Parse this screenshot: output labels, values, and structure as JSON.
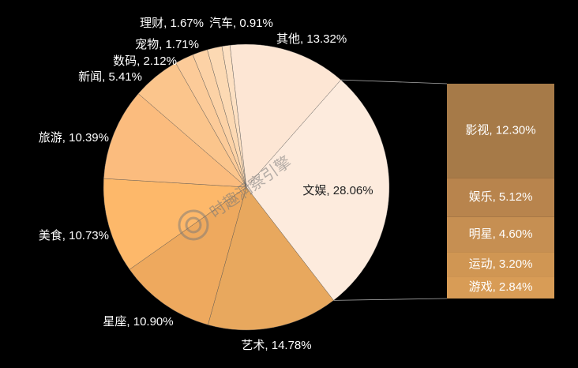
{
  "chart_data": {
    "type": "pie-of-bar",
    "categories": [
      "文娱",
      "艺术",
      "星座",
      "美食",
      "旅游",
      "新闻",
      "数码",
      "宠物",
      "理财",
      "汽车",
      "其他"
    ],
    "values": [
      28.06,
      14.78,
      10.9,
      10.73,
      10.39,
      5.41,
      2.12,
      1.71,
      1.67,
      0.91,
      13.32
    ],
    "value_labels": [
      "文娱, 28.06%",
      "艺术, 14.78%",
      "星座, 10.90%",
      "美食, 10.73%",
      "旅游, 10.39%",
      "新闻, 5.41%",
      "数码, 2.12%",
      "宠物, 1.71%",
      "理财, 1.67%",
      "汽车, 0.91%",
      "其他, 13.32%"
    ],
    "colors": [
      "#fdebdd",
      "#e8a85e",
      "#eea95e",
      "#fdb86a",
      "#fbbc7e",
      "#fbc58c",
      "#fccb99",
      "#fcd2a6",
      "#fcd9b3",
      "#fde0c2",
      "#fde6d4"
    ],
    "bar": {
      "categories": [
        "影视",
        "娱乐",
        "明星",
        "运动",
        "游戏"
      ],
      "values": [
        12.3,
        5.12,
        4.6,
        3.2,
        2.84
      ],
      "value_labels": [
        "影视, 12.30%",
        "娱乐, 5.12%",
        "明星, 4.60%",
        "运动, 3.20%",
        "游戏, 2.84%"
      ],
      "colors": [
        "#a67a48",
        "#b8844d",
        "#c68f52",
        "#d09653",
        "#d89c56"
      ]
    },
    "watermark": "时趣洞察引擎"
  }
}
